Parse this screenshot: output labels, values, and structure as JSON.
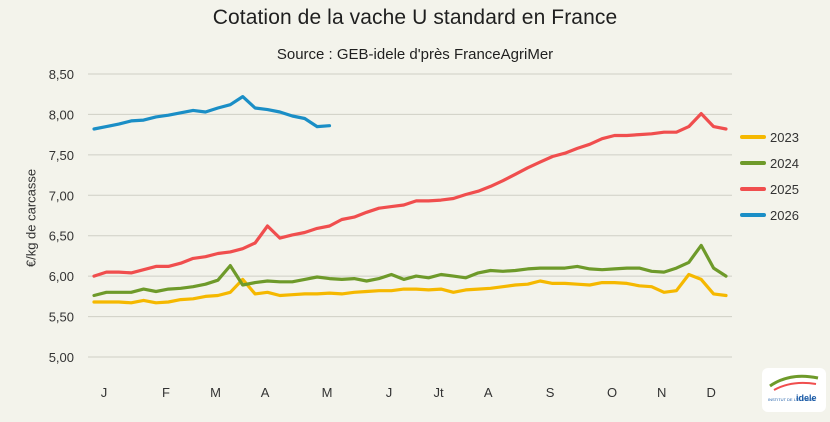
{
  "chart_data": {
    "type": "line",
    "title": "Cotation de la vache U standard en France",
    "subtitle": "Source : GEB-idele d'près FranceAgriMer",
    "xlabel": "",
    "ylabel": "€/kg de carcasse",
    "ylim": [
      5.0,
      8.5
    ],
    "yticks": [
      "5,00",
      "5,50",
      "6,00",
      "6,50",
      "7,00",
      "7,50",
      "8,00",
      "8,50"
    ],
    "x_unit": "week of year",
    "x_range": [
      1,
      52
    ],
    "month_labels": [
      {
        "label": "J",
        "week": 1
      },
      {
        "label": "F",
        "week": 6
      },
      {
        "label": "M",
        "week": 10
      },
      {
        "label": "A",
        "week": 14
      },
      {
        "label": "M",
        "week": 19
      },
      {
        "label": "J",
        "week": 24
      },
      {
        "label": "Jt",
        "week": 28
      },
      {
        "label": "A",
        "week": 32
      },
      {
        "label": "S",
        "week": 37
      },
      {
        "label": "O",
        "week": 42
      },
      {
        "label": "N",
        "week": 46
      },
      {
        "label": "D",
        "week": 50
      }
    ],
    "grid": "horizontal",
    "legend_position": "right",
    "series": [
      {
        "name": "2023",
        "color": "#f5b800",
        "x": [
          1,
          2,
          3,
          4,
          5,
          6,
          7,
          8,
          9,
          10,
          11,
          12,
          13,
          14,
          15,
          16,
          17,
          18,
          19,
          20,
          21,
          22,
          23,
          24,
          25,
          26,
          27,
          28,
          29,
          30,
          31,
          32,
          33,
          34,
          35,
          36,
          37,
          38,
          39,
          40,
          41,
          42,
          43,
          44,
          45,
          46,
          47,
          48,
          49,
          50,
          51,
          52
        ],
        "values": [
          5.68,
          5.68,
          5.68,
          5.67,
          5.7,
          5.67,
          5.68,
          5.71,
          5.72,
          5.75,
          5.76,
          5.8,
          5.96,
          5.78,
          5.8,
          5.76,
          5.77,
          5.78,
          5.78,
          5.79,
          5.78,
          5.8,
          5.81,
          5.82,
          5.82,
          5.84,
          5.84,
          5.83,
          5.84,
          5.8,
          5.83,
          5.84,
          5.85,
          5.87,
          5.89,
          5.9,
          5.94,
          5.91,
          5.91,
          5.9,
          5.89,
          5.92,
          5.92,
          5.91,
          5.88,
          5.87,
          5.8,
          5.82,
          6.02,
          5.96,
          5.78,
          5.76
        ]
      },
      {
        "name": "2024",
        "color": "#6e9a2a",
        "x": [
          1,
          2,
          3,
          4,
          5,
          6,
          7,
          8,
          9,
          10,
          11,
          12,
          13,
          14,
          15,
          16,
          17,
          18,
          19,
          20,
          21,
          22,
          23,
          24,
          25,
          26,
          27,
          28,
          29,
          30,
          31,
          32,
          33,
          34,
          35,
          36,
          37,
          38,
          39,
          40,
          41,
          42,
          43,
          44,
          45,
          46,
          47,
          48,
          49,
          50,
          51,
          52
        ],
        "values": [
          5.76,
          5.8,
          5.8,
          5.8,
          5.84,
          5.81,
          5.84,
          5.85,
          5.87,
          5.9,
          5.95,
          6.13,
          5.89,
          5.92,
          5.94,
          5.93,
          5.93,
          5.96,
          5.99,
          5.97,
          5.96,
          5.97,
          5.94,
          5.97,
          6.02,
          5.96,
          6.0,
          5.98,
          6.02,
          6.0,
          5.98,
          6.04,
          6.07,
          6.06,
          6.07,
          6.09,
          6.1,
          6.1,
          6.1,
          6.12,
          6.09,
          6.08,
          6.09,
          6.1,
          6.1,
          6.06,
          6.05,
          6.1,
          6.17,
          6.38,
          6.1,
          6.0
        ]
      },
      {
        "name": "2025",
        "color": "#f04e4e",
        "x": [
          1,
          2,
          3,
          4,
          5,
          6,
          7,
          8,
          9,
          10,
          11,
          12,
          13,
          14,
          15,
          16,
          17,
          18,
          19,
          20,
          21,
          22,
          23,
          24,
          25,
          26,
          27,
          28,
          29,
          30,
          31,
          32,
          33,
          34,
          35,
          36,
          37,
          38,
          39,
          40,
          41,
          42,
          43,
          44,
          45,
          46,
          47,
          48,
          49,
          50,
          51,
          52
        ],
        "values": [
          6.0,
          6.05,
          6.05,
          6.04,
          6.08,
          6.12,
          6.12,
          6.16,
          6.22,
          6.24,
          6.28,
          6.3,
          6.34,
          6.41,
          6.62,
          6.47,
          6.51,
          6.54,
          6.59,
          6.62,
          6.7,
          6.73,
          6.79,
          6.84,
          6.86,
          6.88,
          6.93,
          6.93,
          6.94,
          6.96,
          7.01,
          7.05,
          7.11,
          7.18,
          7.26,
          7.34,
          7.41,
          7.48,
          7.52,
          7.58,
          7.63,
          7.7,
          7.74,
          7.74,
          7.75,
          7.76,
          7.78,
          7.78,
          7.85,
          8.01,
          7.85,
          7.82
        ]
      },
      {
        "name": "2026",
        "color": "#1a8ec6",
        "x": [
          1,
          2,
          3,
          4,
          5,
          6,
          7,
          8,
          9,
          10,
          11,
          12,
          13,
          14,
          15,
          16,
          17,
          18,
          19,
          20
        ],
        "values": [
          7.82,
          7.85,
          7.88,
          7.92,
          7.93,
          7.97,
          7.99,
          8.02,
          8.05,
          8.03,
          8.08,
          8.12,
          8.22,
          8.08,
          8.06,
          8.03,
          7.98,
          7.95,
          7.85,
          7.86
        ]
      }
    ]
  },
  "logo": {
    "text": "idele",
    "small_text": "INSTITUT DE L'ÉLEVAGE"
  }
}
